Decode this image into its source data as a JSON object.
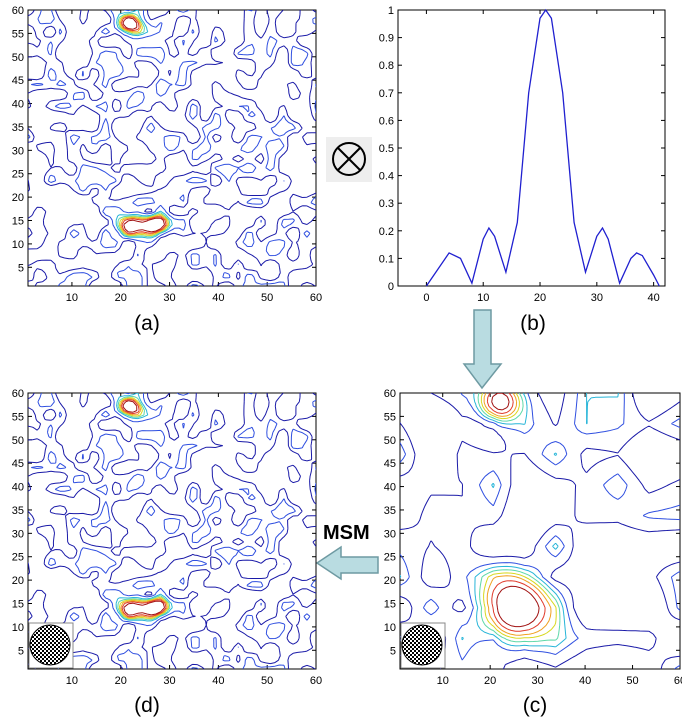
{
  "figure": {
    "operator_symbol": "⊗",
    "arrow_label": "MSM"
  },
  "chart_data": [
    {
      "id": "a",
      "type": "contour",
      "caption": "(a)",
      "xlim": [
        1,
        60
      ],
      "ylim": [
        1,
        60
      ],
      "xticks": [
        10,
        20,
        30,
        40,
        50,
        60
      ],
      "yticks": [
        5,
        10,
        15,
        20,
        25,
        30,
        35,
        40,
        45,
        50,
        55,
        60
      ],
      "background": "noise",
      "sources": [
        {
          "x": 22,
          "y": 57,
          "peak": "red"
        },
        {
          "x": 22,
          "y": 14,
          "peak": "yellow"
        },
        {
          "x": 27,
          "y": 14,
          "peak": "red"
        }
      ]
    },
    {
      "id": "b",
      "type": "line",
      "caption": "(b)",
      "xlim": [
        -5,
        42
      ],
      "ylim": [
        0,
        1
      ],
      "xticks": [
        0,
        10,
        20,
        30,
        40
      ],
      "yticks": [
        0,
        0.1,
        0.2,
        0.3,
        0.4,
        0.5,
        0.6,
        0.7,
        0.8,
        0.9,
        1
      ],
      "x": [
        0,
        2,
        4,
        6,
        8,
        10,
        11,
        12,
        14,
        16,
        18,
        20,
        21,
        22,
        24,
        26,
        28,
        30,
        31,
        32,
        34,
        36,
        37,
        38,
        40,
        41
      ],
      "y": [
        0,
        0.06,
        0.12,
        0.1,
        0.01,
        0.17,
        0.21,
        0.18,
        0.05,
        0.23,
        0.7,
        0.97,
        1.0,
        0.97,
        0.7,
        0.23,
        0.05,
        0.18,
        0.21,
        0.17,
        0.01,
        0.1,
        0.12,
        0.11,
        0.04,
        0
      ]
    },
    {
      "id": "c",
      "type": "contour",
      "caption": "(c)",
      "xlim": [
        1,
        60
      ],
      "ylim": [
        1,
        60
      ],
      "xticks": [
        10,
        20,
        30,
        40,
        50,
        60
      ],
      "yticks": [
        5,
        10,
        15,
        20,
        25,
        30,
        35,
        40,
        45,
        50,
        55,
        60
      ],
      "background": "smooth",
      "sources": [
        {
          "x": 22,
          "y": 58,
          "peak": "yellow"
        },
        {
          "x": 25,
          "y": 14,
          "peak": "red"
        }
      ],
      "inset": "checkerboard-disk"
    },
    {
      "id": "d",
      "type": "contour",
      "caption": "(d)",
      "xlim": [
        1,
        60
      ],
      "ylim": [
        1,
        60
      ],
      "xticks": [
        10,
        20,
        30,
        40,
        50,
        60
      ],
      "yticks": [
        5,
        10,
        15,
        20,
        25,
        30,
        35,
        40,
        45,
        50,
        55,
        60
      ],
      "background": "noise",
      "sources": [
        {
          "x": 22,
          "y": 57,
          "peak": "red"
        },
        {
          "x": 22,
          "y": 14,
          "peak": "yellow"
        },
        {
          "x": 27,
          "y": 14,
          "peak": "red"
        }
      ],
      "inset": "checkerboard-disk"
    }
  ],
  "colors": {
    "axis": "#000000",
    "line": "#2020d0",
    "contour_levels": [
      "#1a1aa8",
      "#2f4fe0",
      "#27b5d8",
      "#5ed8a8",
      "#d8d820",
      "#f0a020",
      "#e03a2a",
      "#a01010"
    ],
    "arrow_fill": "#b9dce1",
    "arrow_stroke": "#6e9aa2"
  }
}
